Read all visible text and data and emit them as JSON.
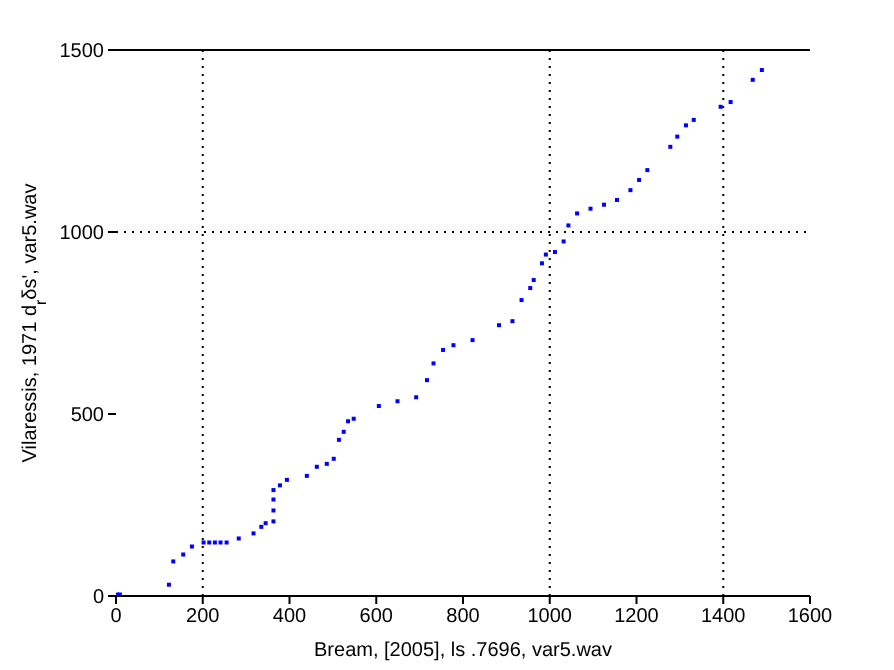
{
  "chart_data": {
    "type": "scatter",
    "xlabel": "Bream, [2005], ls .7696, var5.wav",
    "ylabel": "Vilaressis, 1971   d$_{r}$δs', var5.wav",
    "x": [
      3,
      9,
      122,
      132,
      155,
      175,
      202,
      215,
      228,
      241,
      255,
      283,
      317,
      335,
      345,
      363,
      363,
      363,
      363,
      378,
      394,
      440,
      463,
      486,
      502,
      514,
      525,
      535,
      548,
      606,
      649,
      692,
      717,
      732,
      754,
      778,
      822,
      883,
      914,
      935,
      955,
      963,
      982,
      991,
      1012,
      1032,
      1043,
      1063,
      1094,
      1125,
      1155,
      1186,
      1206,
      1225,
      1278,
      1294,
      1314,
      1332,
      1394,
      1417,
      1468,
      1489
    ],
    "values": [
      4,
      4,
      31,
      95,
      114,
      136,
      147,
      147,
      147,
      147,
      147,
      158,
      172,
      190,
      200,
      205,
      235,
      265,
      291,
      304,
      319,
      330,
      355,
      363,
      377,
      429,
      451,
      480,
      487,
      522,
      535,
      546,
      593,
      639,
      676,
      689,
      703,
      744,
      755,
      813,
      846,
      868,
      914,
      938,
      945,
      974,
      1018,
      1051,
      1064,
      1075,
      1088,
      1115,
      1143,
      1170,
      1234,
      1262,
      1293,
      1308,
      1344,
      1357,
      1418,
      1445
    ],
    "color": "#0000ff",
    "marker": "square",
    "grid": false,
    "legend": false,
    "xlim": [
      0,
      1600
    ],
    "xticks": [
      0,
      200,
      400,
      600,
      800,
      1000,
      1200,
      1400,
      1600
    ],
    "ylim": [
      0,
      1500
    ],
    "yticks": [
      0,
      500,
      1000,
      1500
    ],
    "ref_lines": [
      {
        "axis": "x",
        "value": 200,
        "color": "#000000",
        "line_style": "dotted"
      },
      {
        "axis": "x",
        "value": 1000,
        "color": "#000000",
        "line_style": "dotted"
      },
      {
        "axis": "x",
        "value": 1400,
        "color": "#000000",
        "line_style": "dotted"
      },
      {
        "axis": "y",
        "value": 1000,
        "color": "#000000",
        "line_style": "dotted"
      }
    ]
  }
}
